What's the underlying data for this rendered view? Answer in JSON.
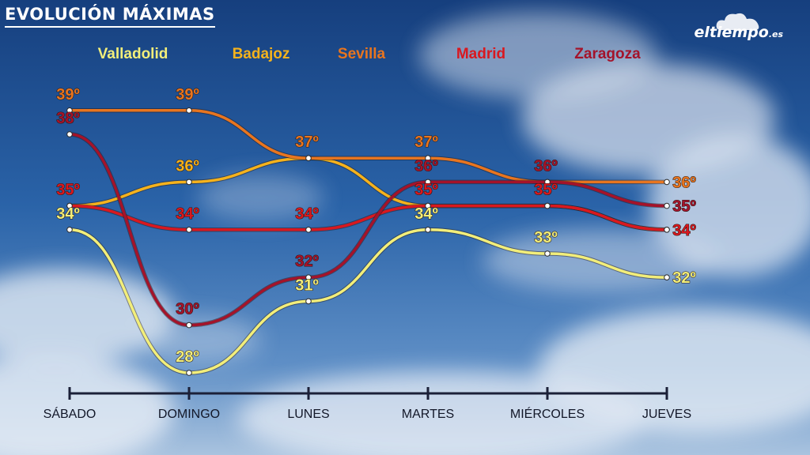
{
  "title": "EVOLUCIÓN MÁXIMAS",
  "brand": {
    "name": "eltiempo",
    "suffix": ".es",
    "icon": "cloud-icon"
  },
  "chart_data": {
    "type": "line",
    "title": "EVOLUCIÓN MÁXIMAS",
    "categories": [
      "SÁBADO",
      "DOMINGO",
      "LUNES",
      "MARTES",
      "MIÉRCOLES",
      "JUEVES"
    ],
    "unit": "º",
    "series": [
      {
        "name": "Valladolid",
        "color": "#f2ee7a",
        "values": [
          34,
          28,
          31,
          34,
          33,
          32
        ]
      },
      {
        "name": "Badajoz",
        "color": "#f5b21c",
        "values": [
          35,
          36,
          37,
          35,
          35,
          34
        ]
      },
      {
        "name": "Sevilla",
        "color": "#e8751f",
        "values": [
          39,
          39,
          37,
          37,
          36,
          36
        ]
      },
      {
        "name": "Madrid",
        "color": "#d9181f",
        "values": [
          35,
          34,
          34,
          35,
          35,
          34
        ]
      },
      {
        "name": "Zaragoza",
        "color": "#a4132a",
        "values": [
          38,
          30,
          32,
          36,
          36,
          35
        ]
      }
    ],
    "labels": {
      "Valladolid": [
        true,
        true,
        true,
        true,
        true,
        true
      ],
      "Badajoz": [
        false,
        true,
        false,
        false,
        false,
        false
      ],
      "Sevilla": [
        true,
        true,
        true,
        true,
        false,
        true
      ],
      "Madrid": [
        true,
        true,
        true,
        true,
        true,
        true
      ],
      "Zaragoza": [
        true,
        true,
        true,
        true,
        true,
        true
      ]
    },
    "grid": false,
    "legend": "top"
  }
}
